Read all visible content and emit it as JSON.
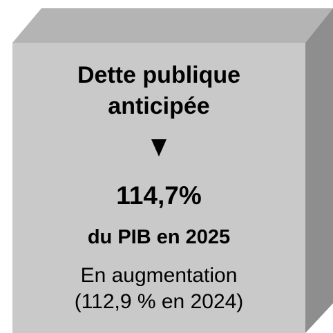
{
  "box": {
    "title": [
      "Dette publique",
      "anticipée"
    ],
    "figure": "114,7%",
    "figure_caption": "du PIB en 2025",
    "trend": [
      "En augmentation",
      "(112,9 % en 2024)"
    ]
  }
}
